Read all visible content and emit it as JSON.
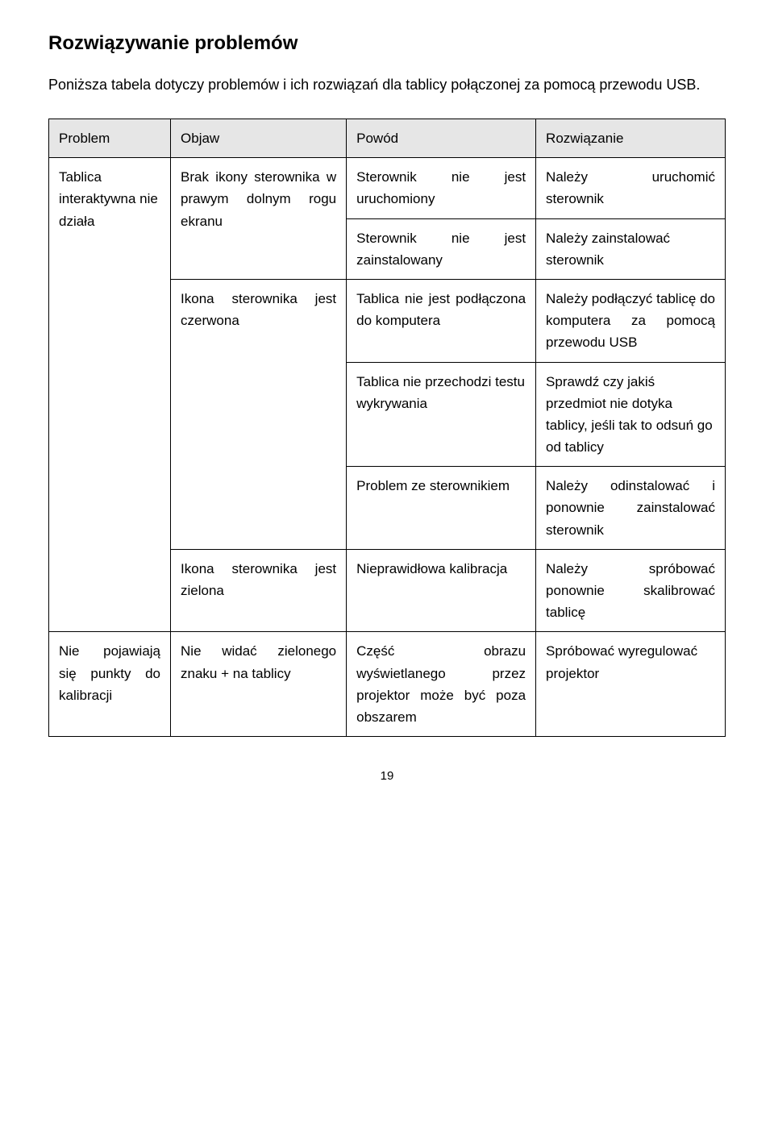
{
  "heading": "Rozwiązywanie problemów",
  "intro": "Poniższa tabela dotyczy problemów i ich rozwiązań dla tablicy połączonej za pomocą przewodu USB.",
  "headers": {
    "problem": "Problem",
    "objaw": "Objaw",
    "powod": "Powód",
    "rozwiazanie": "Rozwiązanie"
  },
  "r1": {
    "problem": "Tablica interaktywna nie działa",
    "objaw": "Brak ikony sterownika w prawym dolnym rogu ekranu",
    "powod": "Sterownik nie jest uruchomiony",
    "rozwiazanie": "Należy uruchomić sterownik"
  },
  "r2": {
    "powod": "Sterownik nie jest zainstalowany",
    "rozwiazanie": "Należy zainstalować sterownik"
  },
  "r3": {
    "objaw": "Ikona sterownika jest czerwona",
    "powod": "Tablica nie jest podłączona do komputera",
    "rozwiazanie": "Należy podłączyć tablicę do komputera za pomocą przewodu USB"
  },
  "r4": {
    "powod": "Tablica nie przechodzi testu wykrywania",
    "rozwiazanie": "Sprawdź czy jakiś przedmiot nie dotyka tablicy, jeśli tak to odsuń go od tablicy"
  },
  "r5": {
    "powod": "Problem ze sterownikiem",
    "rozwiazanie": "Należy odinstalować i ponownie zainstalować sterownik"
  },
  "r6": {
    "objaw": "Ikona sterownika jest zielona",
    "powod": "Nieprawidłowa kalibracja",
    "rozwiazanie": "Należy spróbować ponownie skalibrować tablicę"
  },
  "r7": {
    "problem": "Nie pojawiają się punkty do kalibracji",
    "objaw": "Nie widać zielonego znaku + na tablicy",
    "powod": "Część obrazu wyświetlanego przez projektor może być poza obszarem",
    "rozwiazanie": "Spróbować wyregulować projektor"
  },
  "pagenum": "19",
  "colors": {
    "header_bg": "#e6e6e6",
    "border": "#000000",
    "text": "#000000",
    "bg": "#ffffff"
  },
  "fontsizes": {
    "heading": 24,
    "body": 18,
    "cell": 17,
    "pagenum": 15
  }
}
